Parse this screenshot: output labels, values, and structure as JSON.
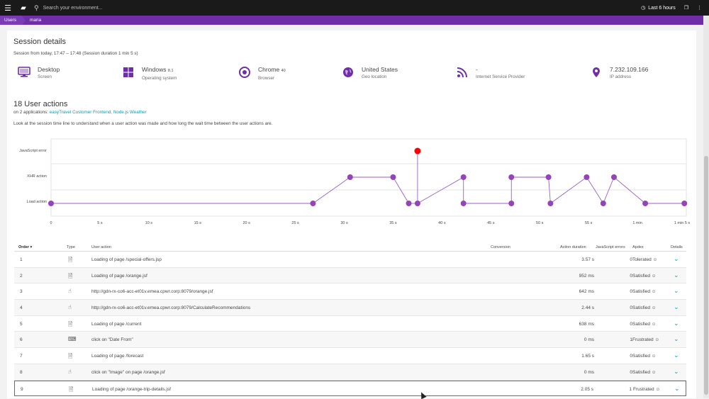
{
  "topbar": {
    "search_placeholder": "Search your environment...",
    "timeframe": "Last 6 hours"
  },
  "breadcrumb": [
    "Users",
    "maria"
  ],
  "page": {
    "title": "Session details",
    "subtitle": "Session from today, 17:47 – 17:48 (Session duration 1 min 5 s)"
  },
  "properties": [
    {
      "icon": "desktop-icon",
      "value": "Desktop",
      "suffix": "",
      "label": "Screen"
    },
    {
      "icon": "windows-icon",
      "value": "Windows",
      "suffix": "8.1",
      "label": "Operating system"
    },
    {
      "icon": "chrome-icon",
      "value": "Chrome",
      "suffix": "40",
      "label": "Browser"
    },
    {
      "icon": "globe-icon",
      "value": "United States",
      "suffix": "",
      "label": "Geo location"
    },
    {
      "icon": "rss-icon",
      "value": "-",
      "suffix": "",
      "label": "Internet Service Provider"
    },
    {
      "icon": "location-pin-icon",
      "value": "7.232.109.166",
      "suffix": "",
      "label": "IP address"
    }
  ],
  "actions": {
    "title": "18 User actions",
    "apps_prefix": "on 2 applications: ",
    "apps_links": "easyTravel Customer Frontend, Node.js Weather",
    "hint": "Look at the session time line to understand when a user action was made and how long the wait time between the user actions are."
  },
  "chart_data": {
    "type": "scatter",
    "title": "",
    "xlabel": "",
    "ylabel": "",
    "categories": [
      "JavaScript error",
      "XHR action",
      "Load action"
    ],
    "x_ticks": [
      "0",
      "5 s",
      "10 s",
      "15 s",
      "20 s",
      "25 s",
      "30 s",
      "35 s",
      "40 s",
      "45 s",
      "50 s",
      "55 s",
      "1 min",
      "1 min 5 s"
    ],
    "xlim": [
      0,
      65
    ],
    "grid": true,
    "points": [
      {
        "t": 0,
        "lane": "Load action"
      },
      {
        "t": 26.8,
        "lane": "Load action"
      },
      {
        "t": 30.6,
        "lane": "XHR action"
      },
      {
        "t": 35,
        "lane": "XHR action"
      },
      {
        "t": 36.6,
        "lane": "Load action"
      },
      {
        "t": 37.5,
        "lane": "Load action"
      },
      {
        "t": 37.5,
        "lane": "JavaScript error",
        "error": true
      },
      {
        "t": 42.2,
        "lane": "XHR action"
      },
      {
        "t": 42.2,
        "lane": "Load action"
      },
      {
        "t": 47.1,
        "lane": "Load action"
      },
      {
        "t": 47.1,
        "lane": "XHR action"
      },
      {
        "t": 50.9,
        "lane": "XHR action"
      },
      {
        "t": 51.1,
        "lane": "Load action"
      },
      {
        "t": 54.8,
        "lane": "XHR action"
      },
      {
        "t": 56.5,
        "lane": "Load action"
      },
      {
        "t": 57.6,
        "lane": "XHR action"
      },
      {
        "t": 60.8,
        "lane": "Load action"
      },
      {
        "t": 64.8,
        "lane": "Load action"
      }
    ],
    "colors": {
      "point": "#9444b8",
      "error": "#ff0000",
      "line": "#9a5fc0"
    }
  },
  "table": {
    "headers": {
      "order": "Order ▾",
      "type": "Type",
      "action": "User action",
      "conversion": "Conversion",
      "duration": "Action duration",
      "errors": "JavaScript errors",
      "apdex": "Apdex",
      "details": "Details"
    },
    "rows": [
      {
        "order": "1",
        "type_icon": "page-icon",
        "action": "Loading of page /special-offers.jsp",
        "duration": "3.57 s",
        "errors": "0",
        "apdex": "Tolerated"
      },
      {
        "order": "2",
        "type_icon": "page-icon",
        "action": "Loading of page /orange.jsf",
        "duration": "952 ms",
        "errors": "0",
        "apdex": "Satisfied"
      },
      {
        "order": "3",
        "type_icon": "xhr-icon",
        "action": "http://gdn-rx-co6-acc-et01v.emea.cpwr.corp:8079/orange.jsf",
        "duration": "642 ms",
        "errors": "0",
        "apdex": "Satisfied"
      },
      {
        "order": "4",
        "type_icon": "xhr-icon",
        "action": "http://gdn-rx-co6-acc-et01v.emea.cpwr.corp:8079/CalculateRecommendations",
        "duration": "2.44 s",
        "errors": "0",
        "apdex": "Satisfied"
      },
      {
        "order": "5",
        "type_icon": "page-icon",
        "action": "Loading of page /current",
        "duration": "638 ms",
        "errors": "0",
        "apdex": "Satisfied"
      },
      {
        "order": "6",
        "type_icon": "click-icon",
        "action": "click on \"Date From\"",
        "duration": "0 ms",
        "errors": "1",
        "apdex": "Frustrated"
      },
      {
        "order": "7",
        "type_icon": "page-icon",
        "action": "Loading of page /forecast",
        "duration": "1.65 s",
        "errors": "0",
        "apdex": "Satisfied"
      },
      {
        "order": "8",
        "type_icon": "xhr-icon",
        "action": "click on \"Image\" on page /orange.jsf",
        "duration": "0 ms",
        "errors": "0",
        "apdex": "Satisfied"
      },
      {
        "order": "9",
        "type_icon": "page-icon",
        "action": "Loading of page /orange-trip-details.jsf",
        "duration": "2.05 s",
        "errors": "1",
        "apdex": "Frustrated"
      }
    ]
  }
}
